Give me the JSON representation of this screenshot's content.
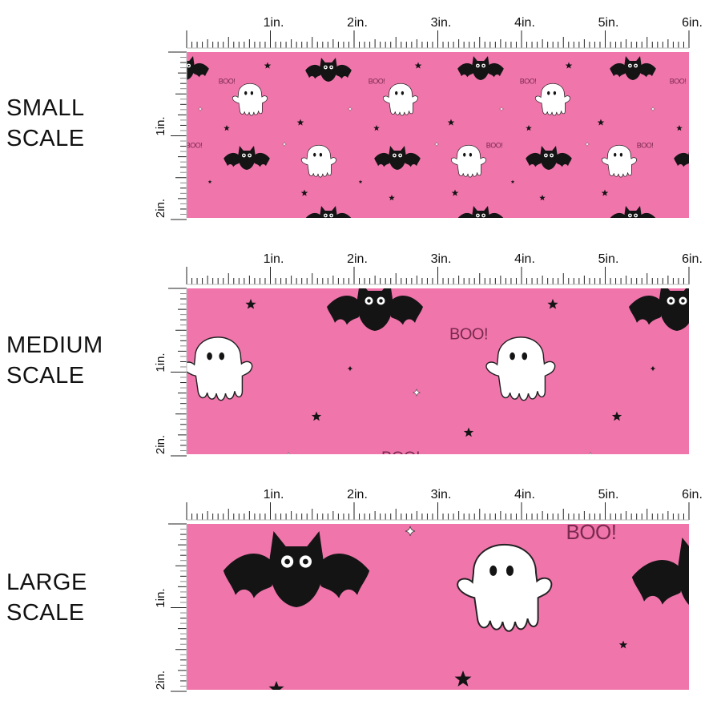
{
  "colors": {
    "fabric": "#f075ab",
    "ink": "#141414",
    "ghost": "#ffffff",
    "ruler": "#222222",
    "boo_text": "#7a2a4e"
  },
  "ruler": {
    "horizontal_labels": [
      "1in.",
      "2in.",
      "3in.",
      "4in.",
      "5in.",
      "6in."
    ],
    "vertical_labels": [
      "1in.",
      "2in."
    ]
  },
  "panels": [
    {
      "label_line1": "SMALL",
      "label_line2": "SCALE",
      "motif_text": "BOO!"
    },
    {
      "label_line1": "MEDIUM",
      "label_line2": "SCALE",
      "motif_text": "BOO!"
    },
    {
      "label_line1": "LARGE",
      "label_line2": "SCALE",
      "motif_text": "BOO!"
    }
  ]
}
